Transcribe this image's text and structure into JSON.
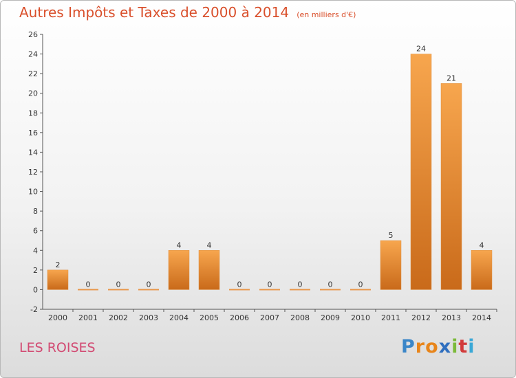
{
  "header": {
    "title": "Autres Impôts et Taxes de 2000 à 2014",
    "unit": "(en milliers d'€)"
  },
  "footer": {
    "commune": "LES ROISES",
    "logo_letters": [
      "P",
      "r",
      "o",
      "x",
      "i",
      "t",
      "i"
    ],
    "logo_colors": [
      "#3a86c8",
      "#e8851a",
      "#e8851a",
      "#2f6fbf",
      "#7cba3a",
      "#d23b3b",
      "#3aa8d6"
    ]
  },
  "colors": {
    "bar_light": "#f7a64e",
    "bar_dark": "#c96a1a",
    "title": "#d94f2b",
    "commune": "#d24b73"
  },
  "chart_data": {
    "type": "bar",
    "title": "Autres Impôts et Taxes de 2000 à 2014",
    "subtitle": "(en milliers d'€)",
    "categories": [
      "2000",
      "2001",
      "2002",
      "2003",
      "2004",
      "2005",
      "2006",
      "2007",
      "2008",
      "2009",
      "2010",
      "2011",
      "2012",
      "2013",
      "2014"
    ],
    "values": [
      2,
      0,
      0,
      0,
      4,
      4,
      0,
      0,
      0,
      0,
      0,
      5,
      24,
      21,
      4
    ],
    "data_labels": [
      "2",
      "0",
      "0",
      "0",
      "4",
      "4",
      "0",
      "0",
      "0",
      "0",
      "0",
      "5",
      "24",
      "21",
      "4"
    ],
    "ylim": [
      -2,
      26
    ],
    "yticks": [
      -2,
      0,
      2,
      4,
      6,
      8,
      10,
      12,
      14,
      16,
      18,
      20,
      22,
      24,
      26
    ],
    "grid": false,
    "legend": "none",
    "xlabel": "",
    "ylabel": ""
  }
}
